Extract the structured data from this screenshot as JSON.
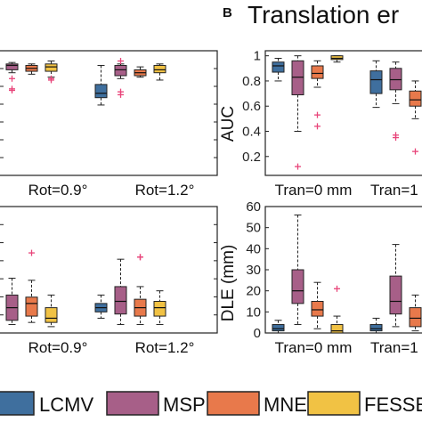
{
  "panel_b": {
    "letter": "B",
    "title": "Translation er"
  },
  "colors": {
    "LCMV": "#3f6f9e",
    "MSP": "#a75f88",
    "MNE": "#e8794b",
    "FESSE": "#f1c244",
    "outlier": "#e8457a"
  },
  "legend": [
    {
      "name": "LCMV",
      "color": "#3f6f9e"
    },
    {
      "name": "MSP",
      "color": "#a75f88"
    },
    {
      "name": "MNE",
      "color": "#e8794b"
    },
    {
      "name": "FESSE",
      "color": "#f1c244"
    }
  ],
  "chart_data": [
    {
      "id": "rot_top",
      "type": "box",
      "categories": [
        "Rot=0.9°",
        "Rot=1.2°"
      ],
      "ylim": [
        0.2,
        1.05
      ],
      "series": [
        {
          "name": "LCMV",
          "boxes": [
            {
              "min": 0.64,
              "q1": 0.71,
              "med": 0.78,
              "q3": 0.86,
              "max": 0.98,
              "out": []
            },
            {
              "min": 0.68,
              "q1": 0.73,
              "med": 0.76,
              "q3": 0.82,
              "max": 0.95,
              "out": []
            }
          ]
        },
        {
          "name": "MSP",
          "boxes": [
            {
              "min": 0.9,
              "q1": 0.92,
              "med": 0.95,
              "q3": 0.96,
              "max": 0.97,
              "out": [
                0.86,
                0.79,
                0.78
              ]
            },
            {
              "min": 0.86,
              "q1": 0.88,
              "med": 0.92,
              "q3": 0.95,
              "max": 0.96,
              "out": [
                0.98,
                0.77,
                0.75
              ]
            }
          ]
        },
        {
          "name": "MNE",
          "boxes": [
            {
              "min": 0.89,
              "q1": 0.91,
              "med": 0.93,
              "q3": 0.95,
              "max": 0.96,
              "out": []
            },
            {
              "min": 0.87,
              "q1": 0.88,
              "med": 0.9,
              "q3": 0.92,
              "max": 0.94,
              "out": []
            }
          ]
        },
        {
          "name": "FESSE",
          "boxes": [
            {
              "min": 0.87,
              "q1": 0.91,
              "med": 0.94,
              "q3": 0.96,
              "max": 0.98,
              "out": [
                0.86,
                0.85
              ]
            },
            {
              "min": 0.85,
              "q1": 0.9,
              "med": 0.92,
              "q3": 0.95,
              "max": 0.96,
              "out": []
            }
          ]
        }
      ]
    },
    {
      "id": "rot_bottom",
      "type": "box",
      "categories": [
        "Rot=0.9°",
        "Rot=1.2°"
      ],
      "ylim": [
        0,
        60
      ],
      "series": [
        {
          "name": "LCMV",
          "boxes": [
            {
              "min": 5,
              "q1": 7,
              "med": 8,
              "q3": 9,
              "max": 12,
              "out": [
                5,
                3,
                1
              ]
            },
            {
              "min": 7,
              "q1": 10,
              "med": 12,
              "q3": 14,
              "max": 18,
              "out": []
            }
          ]
        },
        {
          "name": "MSP",
          "boxes": [
            {
              "min": 4,
              "q1": 6,
              "med": 12,
              "q3": 18,
              "max": 26,
              "out": []
            },
            {
              "min": 4,
              "q1": 9,
              "med": 15,
              "q3": 22,
              "max": 35,
              "out": []
            }
          ]
        },
        {
          "name": "MNE",
          "boxes": [
            {
              "min": 5,
              "q1": 8,
              "med": 14,
              "q3": 17,
              "max": 25,
              "out": [
                38
              ]
            },
            {
              "min": 4,
              "q1": 8,
              "med": 12,
              "q3": 16,
              "max": 22,
              "out": [
                36,
                36
              ]
            }
          ]
        },
        {
          "name": "FESSE",
          "boxes": [
            {
              "min": 3,
              "q1": 5,
              "med": 7,
              "q3": 12,
              "max": 18,
              "out": []
            },
            {
              "min": 4,
              "q1": 8,
              "med": 12,
              "q3": 15,
              "max": 20,
              "out": []
            }
          ]
        }
      ]
    },
    {
      "id": "tran_auc",
      "type": "box",
      "ylabel": "AUC",
      "yticks": [
        "1",
        "0.8",
        "0.6",
        "0.4",
        "0.2"
      ],
      "ytick_values": [
        1,
        0.8,
        0.6,
        0.4,
        0.2
      ],
      "ylim": [
        0.05,
        1.04
      ],
      "categories": [
        "Tran=0 mm",
        "Tran=1"
      ],
      "series": [
        {
          "name": "LCMV",
          "boxes": [
            {
              "min": 0.8,
              "q1": 0.87,
              "med": 0.92,
              "q3": 0.95,
              "max": 0.98,
              "out": []
            },
            {
              "min": 0.59,
              "q1": 0.7,
              "med": 0.81,
              "q3": 0.88,
              "max": 0.96,
              "out": []
            }
          ]
        },
        {
          "name": "MSP",
          "boxes": [
            {
              "min": 0.4,
              "q1": 0.69,
              "med": 0.83,
              "q3": 0.96,
              "max": 1.0,
              "out": [
                0.12
              ]
            },
            {
              "min": 0.62,
              "q1": 0.73,
              "med": 0.81,
              "q3": 0.9,
              "max": 0.95,
              "out": [
                0.37,
                0.35
              ]
            }
          ]
        },
        {
          "name": "MNE",
          "boxes": [
            {
              "min": 0.75,
              "q1": 0.82,
              "med": 0.86,
              "q3": 0.92,
              "max": 0.96,
              "out": [
                0.53,
                0.44
              ]
            },
            {
              "min": 0.5,
              "q1": 0.6,
              "med": 0.65,
              "q3": 0.72,
              "max": 0.8,
              "out": [
                0.24
              ]
            }
          ]
        },
        {
          "name": "FESSE",
          "boxes": [
            {
              "min": 0.95,
              "q1": 0.97,
              "med": 0.98,
              "q3": 1.0,
              "max": 1.0,
              "out": []
            },
            {
              "min": 0.9,
              "q1": 0.93,
              "med": 0.96,
              "q3": 0.98,
              "max": 0.99,
              "out": []
            }
          ]
        }
      ]
    },
    {
      "id": "tran_dle",
      "type": "box",
      "ylabel": "DLE (mm)",
      "yticks": [
        "60",
        "50",
        "40",
        "30",
        "20",
        "10",
        "0"
      ],
      "ytick_values": [
        60,
        50,
        40,
        30,
        20,
        10,
        0
      ],
      "ylim": [
        0,
        60
      ],
      "categories": [
        "Tran=0 mm",
        "Tran=1"
      ],
      "series": [
        {
          "name": "LCMV",
          "boxes": [
            {
              "min": 0,
              "q1": 1,
              "med": 2,
              "q3": 4,
              "max": 6,
              "out": []
            },
            {
              "min": 0,
              "q1": 1,
              "med": 2,
              "q3": 4,
              "max": 7,
              "out": []
            }
          ]
        },
        {
          "name": "MSP",
          "boxes": [
            {
              "min": 4,
              "q1": 14,
              "med": 20,
              "q3": 30,
              "max": 56,
              "out": []
            },
            {
              "min": 3,
              "q1": 9,
              "med": 15,
              "q3": 27,
              "max": 42,
              "out": []
            }
          ]
        },
        {
          "name": "MNE",
          "boxes": [
            {
              "min": 2,
              "q1": 8,
              "med": 11,
              "q3": 15,
              "max": 24,
              "out": []
            },
            {
              "min": 1,
              "q1": 3,
              "med": 7,
              "q3": 12,
              "max": 18,
              "out": []
            }
          ]
        },
        {
          "name": "FESSE",
          "boxes": [
            {
              "min": 0,
              "q1": 0,
              "med": 1,
              "q3": 4,
              "max": 8,
              "out": [
                21
              ]
            },
            {
              "min": 0,
              "q1": 1,
              "med": 3,
              "q3": 6,
              "max": 10,
              "out": []
            }
          ]
        }
      ]
    }
  ]
}
